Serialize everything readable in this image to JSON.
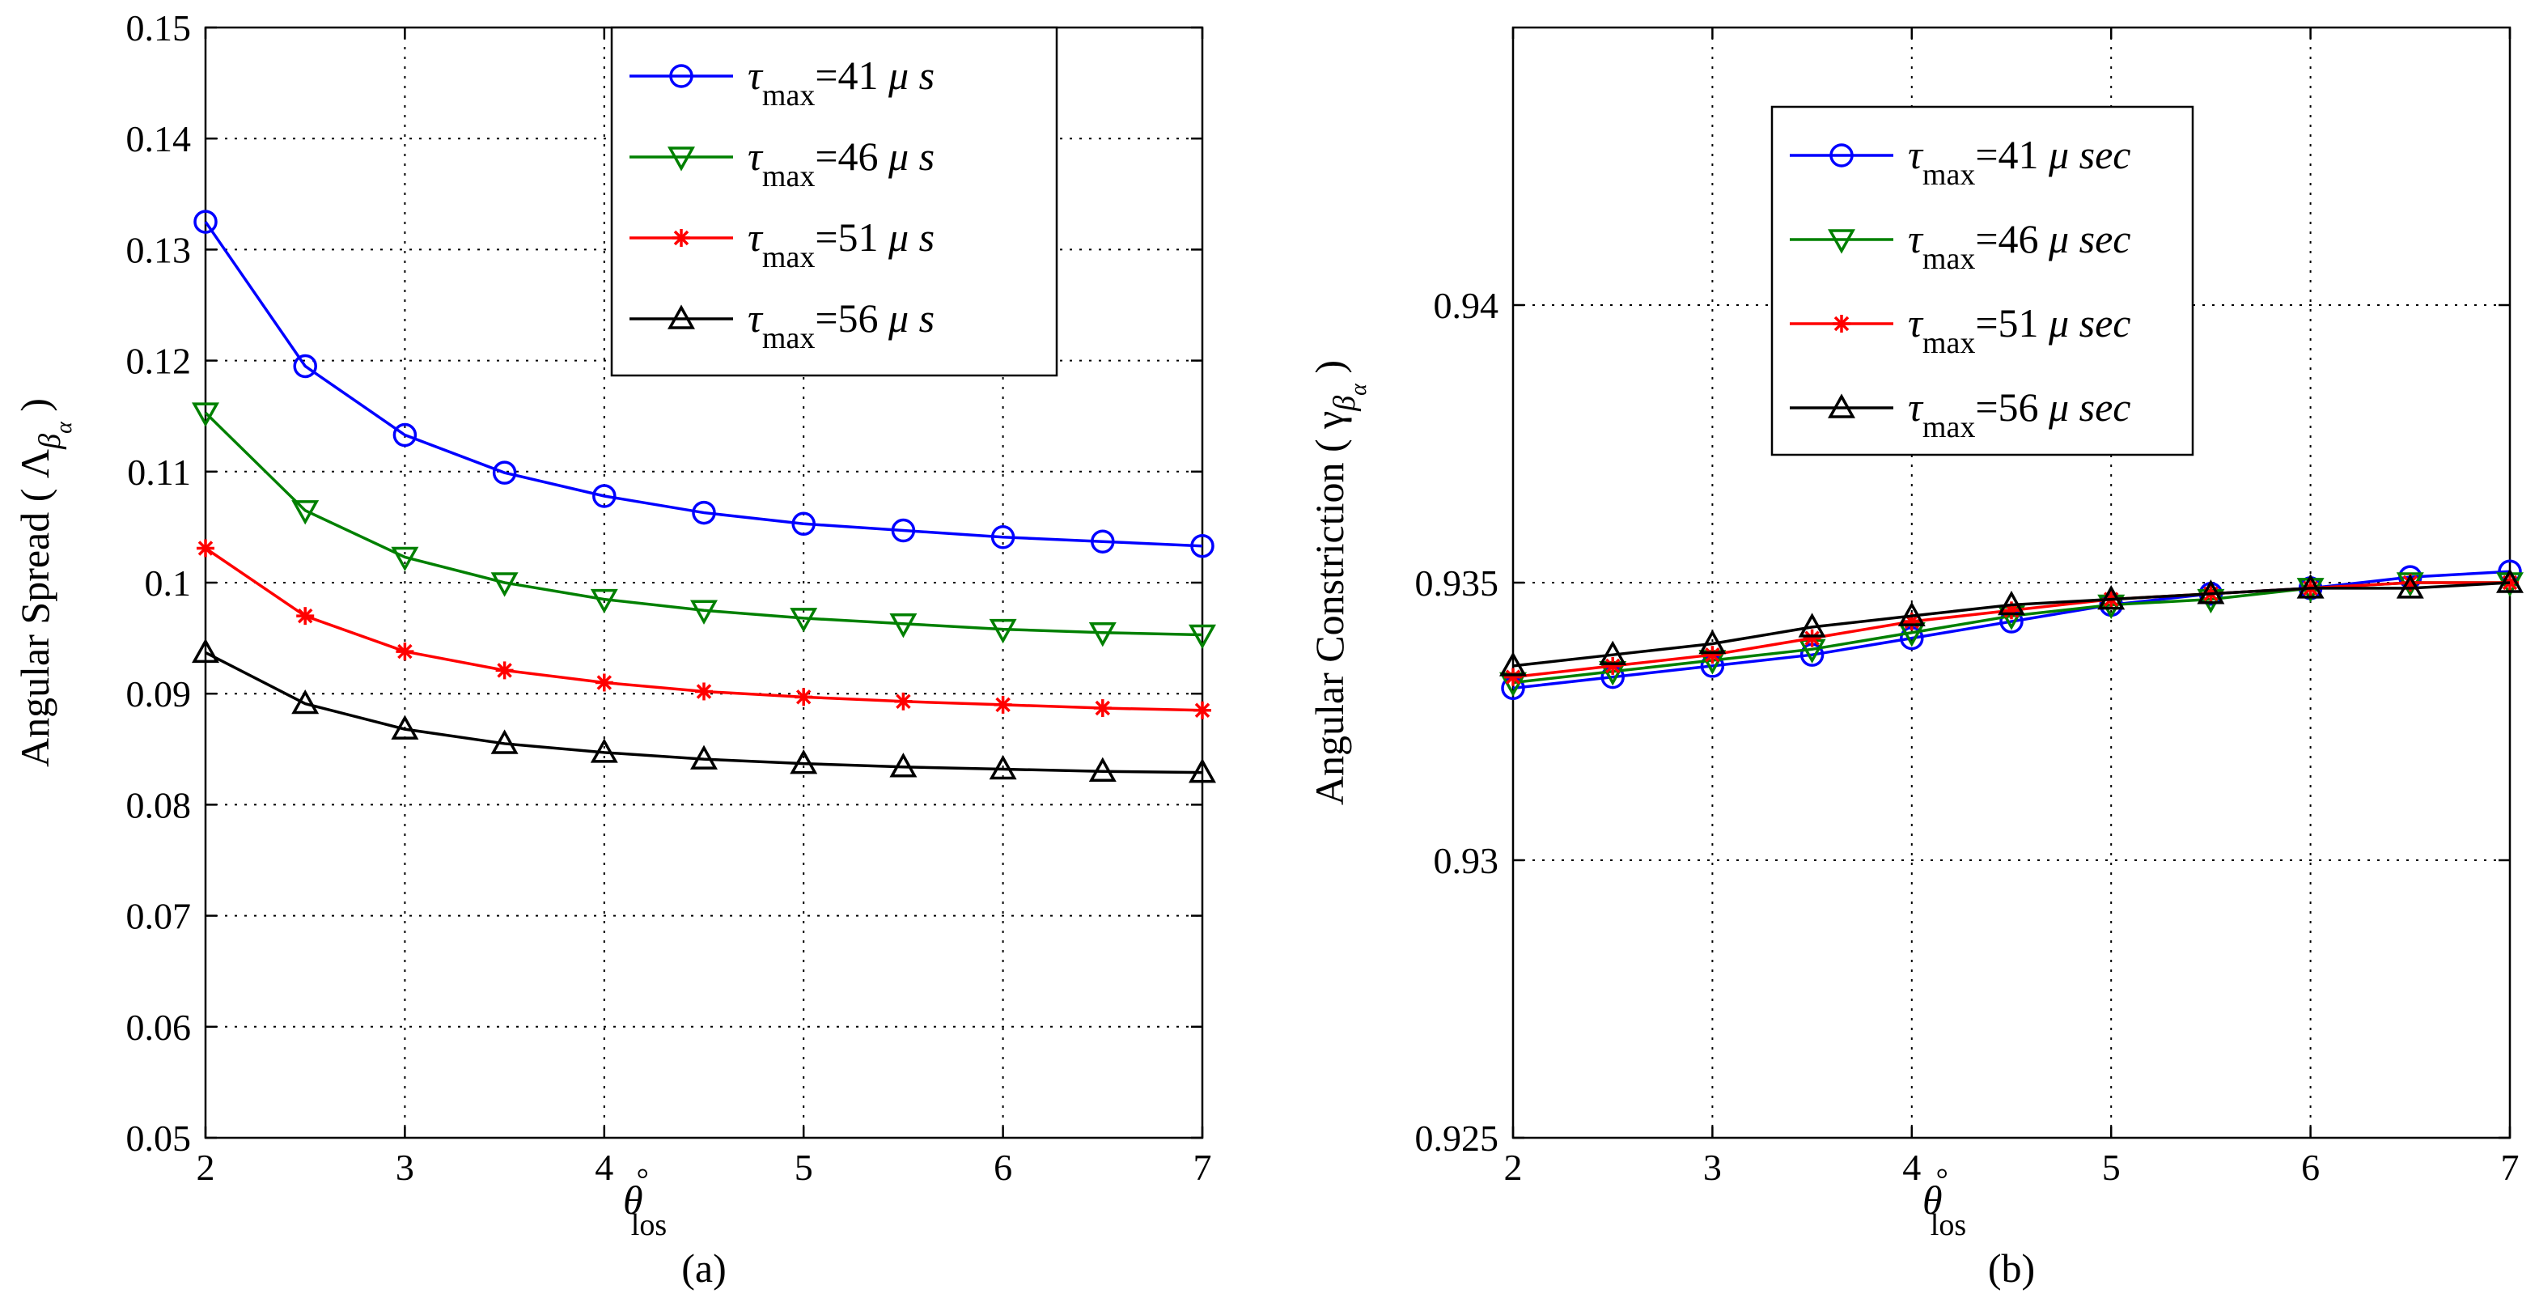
{
  "colors": {
    "series": [
      "#0000ff",
      "#008000",
      "#ff0000",
      "#000000"
    ],
    "grid": "#000000",
    "axis": "#000000",
    "background": "#ffffff"
  },
  "chart_data": [
    {
      "type": "line",
      "panel_label": "(a)",
      "xlabel": "θ",
      "xlabel_sup": "°",
      "xlabel_sub": "los",
      "ylabel": "Angular Spread ( Λ",
      "ylabel_sub": "β",
      "ylabel_subsub": "α",
      "ylabel_close": ")",
      "xlim": [
        2,
        7
      ],
      "ylim": [
        0.05,
        0.15
      ],
      "xticks": [
        "2",
        "3",
        "4",
        "5",
        "6",
        "7"
      ],
      "yticks": [
        "0.05",
        "0.06",
        "0.07",
        "0.08",
        "0.09",
        "0.1",
        "0.11",
        "0.12",
        "0.13",
        "0.14",
        "0.15"
      ],
      "grid": true,
      "legend_position": "top-right",
      "x": [
        2,
        2.5,
        3,
        3.5,
        4,
        4.5,
        5,
        5.5,
        6,
        6.5,
        7
      ],
      "series": [
        {
          "name": "τmax=41 μs",
          "symbol": "τ",
          "sub": "max",
          "value": "=41",
          "unit": "μ s",
          "marker": "circle",
          "values": [
            0.1325,
            0.1195,
            0.1133,
            0.1099,
            0.1078,
            0.1063,
            0.1053,
            0.1047,
            0.1041,
            0.1037,
            0.1033
          ]
        },
        {
          "name": "τmax=46 μs",
          "symbol": "τ",
          "sub": "max",
          "value": "=46",
          "unit": "μ s",
          "marker": "triangle-down",
          "values": [
            0.1153,
            0.1065,
            0.1023,
            0.1,
            0.0985,
            0.0975,
            0.0968,
            0.0963,
            0.0958,
            0.0955,
            0.0953
          ]
        },
        {
          "name": "τmax=51 μs",
          "symbol": "τ",
          "sub": "max",
          "value": "=51",
          "unit": "μ s",
          "marker": "star",
          "values": [
            0.1031,
            0.097,
            0.0938,
            0.0921,
            0.091,
            0.0902,
            0.0897,
            0.0893,
            0.089,
            0.0887,
            0.0885
          ]
        },
        {
          "name": "τmax=56 μs",
          "symbol": "τ",
          "sub": "max",
          "value": "=56",
          "unit": "μ s",
          "marker": "triangle-up",
          "values": [
            0.0937,
            0.0891,
            0.0868,
            0.0855,
            0.0847,
            0.0841,
            0.0837,
            0.0834,
            0.0832,
            0.083,
            0.0829
          ]
        }
      ]
    },
    {
      "type": "line",
      "panel_label": "(b)",
      "xlabel": "θ",
      "xlabel_sup": "°",
      "xlabel_sub": "los",
      "ylabel": "Angular Constriction ( γ",
      "ylabel_sub": "β",
      "ylabel_subsub": "α",
      "ylabel_close": ")",
      "xlim": [
        2,
        7
      ],
      "ylim": [
        0.925,
        0.945
      ],
      "xticks": [
        "2",
        "3",
        "4",
        "5",
        "6",
        "7"
      ],
      "yticks": [
        "0.925",
        "0.93",
        "0.935",
        "0.94"
      ],
      "grid": true,
      "legend_position": "top-left",
      "x": [
        2,
        2.5,
        3,
        3.5,
        4,
        4.5,
        5,
        5.5,
        6,
        6.5,
        7
      ],
      "series": [
        {
          "name": "τmax=41 μsec",
          "symbol": "τ",
          "sub": "max",
          "value": "=41",
          "unit": "μ sec",
          "marker": "circle",
          "values": [
            0.9331,
            0.9333,
            0.9335,
            0.9337,
            0.934,
            0.9343,
            0.9346,
            0.9348,
            0.9349,
            0.9351,
            0.9352
          ]
        },
        {
          "name": "τmax=46 μsec",
          "symbol": "τ",
          "sub": "max",
          "value": "=46",
          "unit": "μ sec",
          "marker": "triangle-down",
          "values": [
            0.9332,
            0.9334,
            0.9336,
            0.9338,
            0.9341,
            0.9344,
            0.9346,
            0.9347,
            0.9349,
            0.935,
            0.935
          ]
        },
        {
          "name": "τmax=51 μsec",
          "symbol": "τ",
          "sub": "max",
          "value": "=51",
          "unit": "μ sec",
          "marker": "star",
          "values": [
            0.9333,
            0.9335,
            0.9337,
            0.934,
            0.9343,
            0.9345,
            0.9347,
            0.9348,
            0.9349,
            0.935,
            0.935
          ]
        },
        {
          "name": "τmax=56 μsec",
          "symbol": "τ",
          "sub": "max",
          "value": "=56",
          "unit": "μ sec",
          "marker": "triangle-up",
          "values": [
            0.9335,
            0.9337,
            0.9339,
            0.9342,
            0.9344,
            0.9346,
            0.9347,
            0.9348,
            0.9349,
            0.9349,
            0.935
          ]
        }
      ]
    }
  ]
}
